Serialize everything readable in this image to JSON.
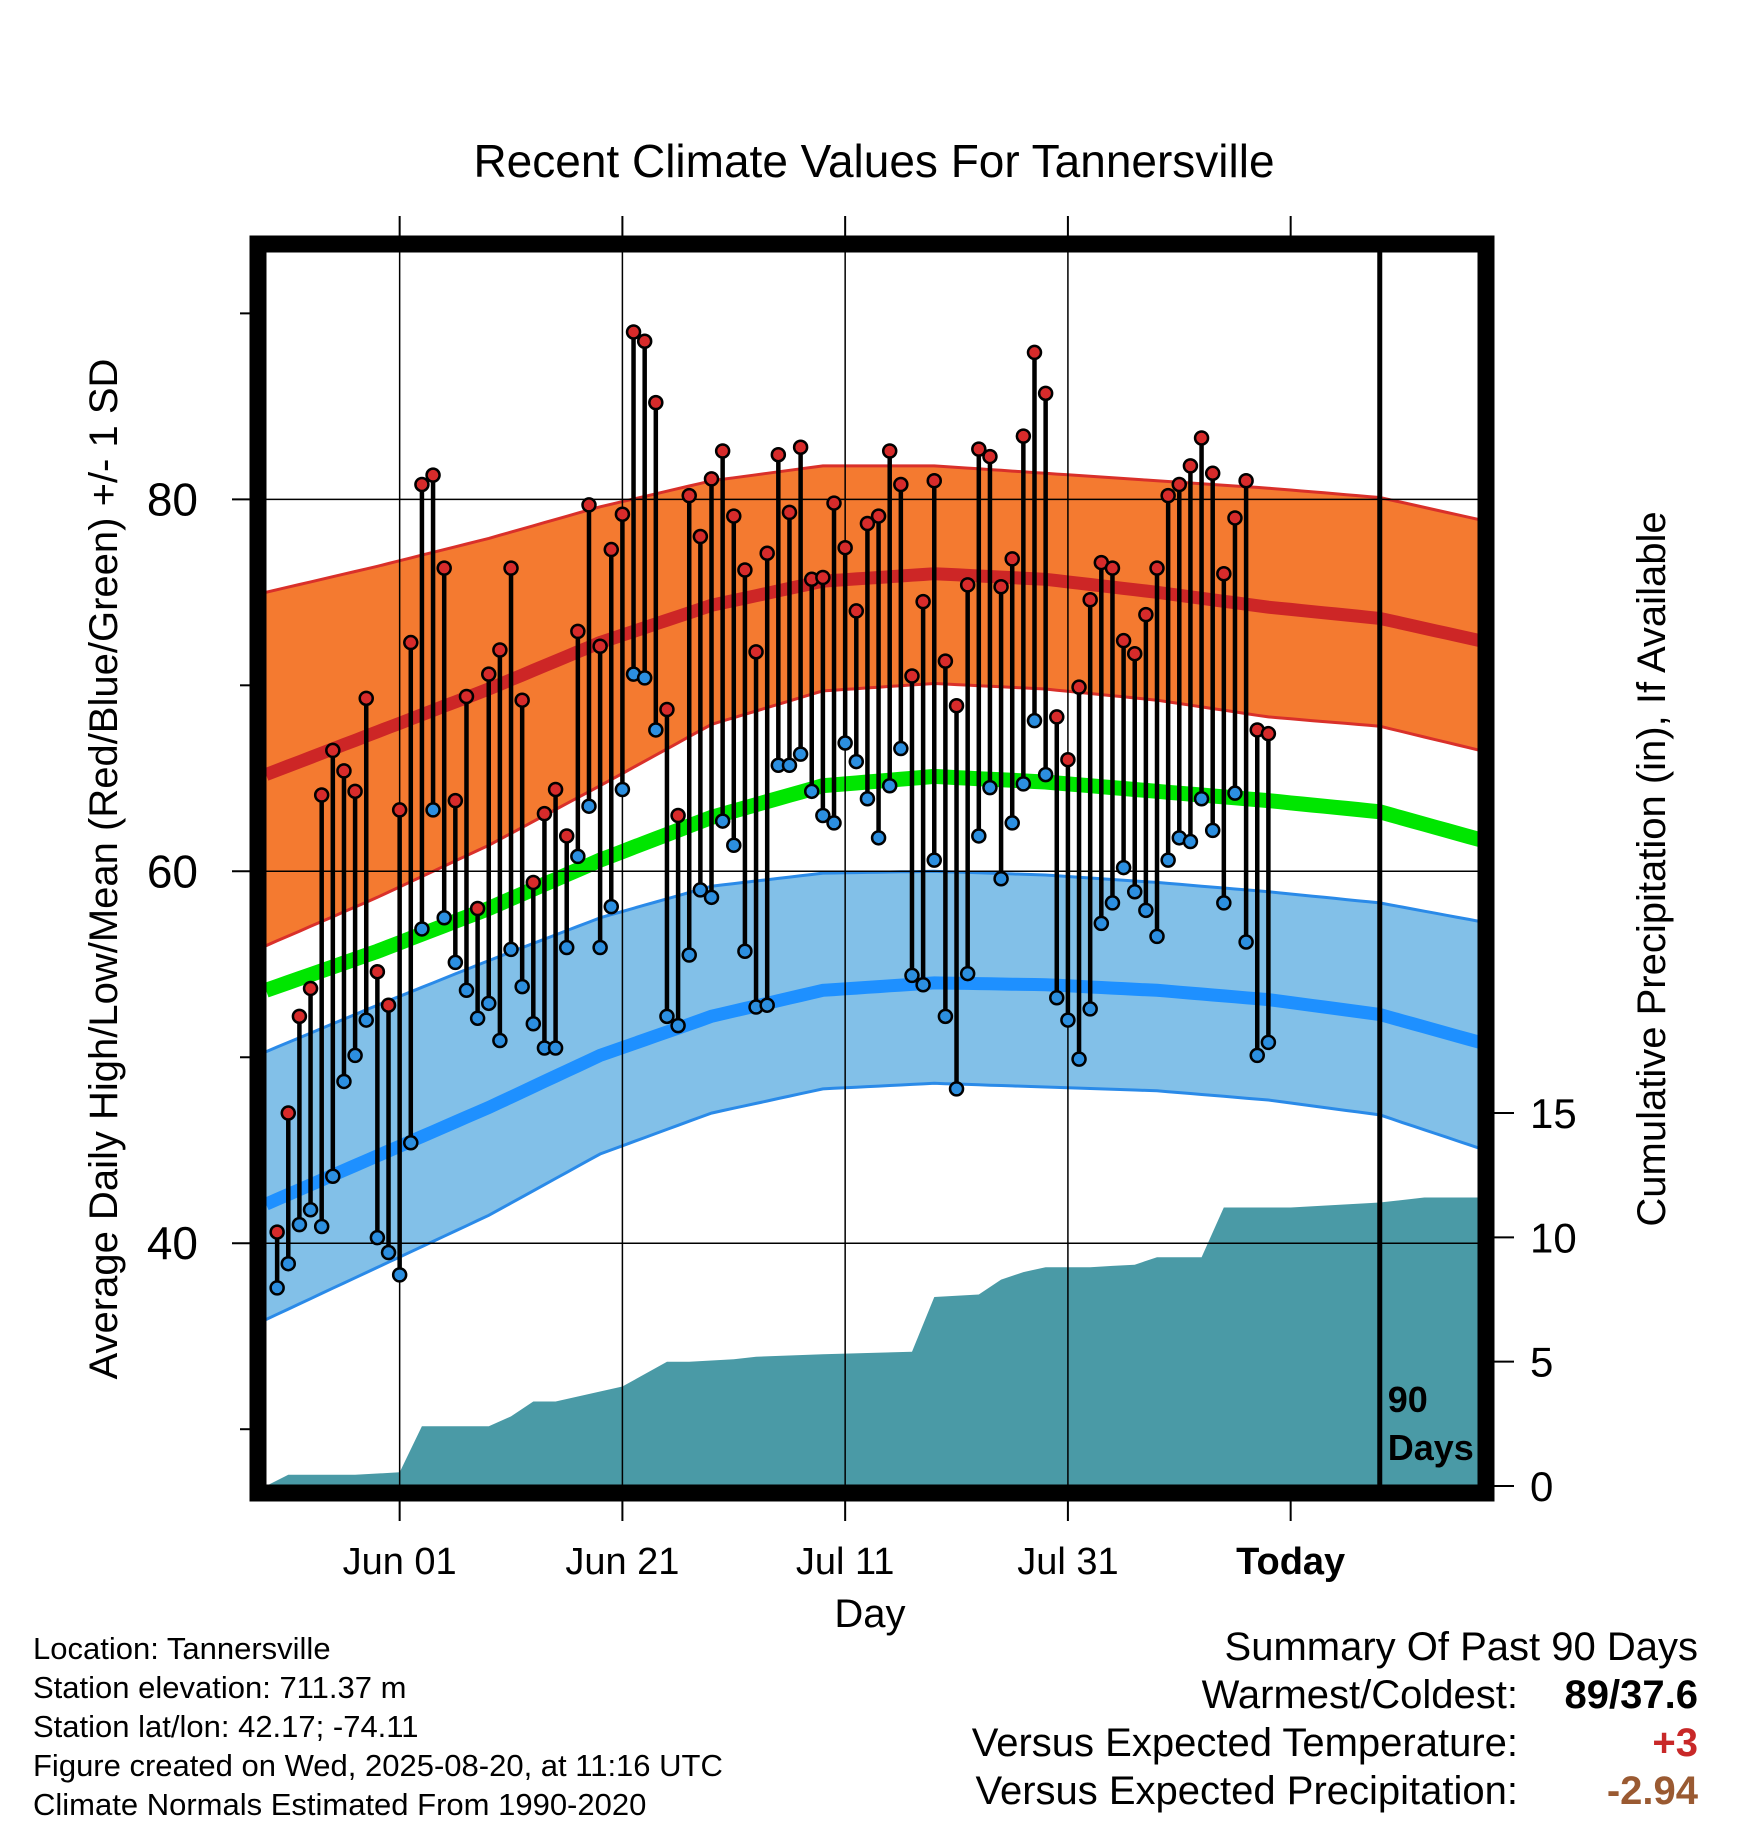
{
  "chart_data": {
    "type": "line",
    "title": "Recent Climate Values For Tannersville",
    "xlabel": "Day",
    "ylabel": "Average Daily High/Low/Mean (Red/Blue/Green) +/- 1 SD",
    "y2label": "Cumulative Precipitation (in), If Available",
    "x_ticks": [
      "Jun 01",
      "Jun 21",
      "Jul 11",
      "Jul 31",
      "Today"
    ],
    "y_ticks": [
      40,
      60,
      80
    ],
    "y2_ticks": [
      0,
      5,
      10,
      15
    ],
    "ylim": [
      27,
      93.3
    ],
    "y2lim": [
      0,
      50
    ],
    "xlim_days": [
      -100,
      9
    ],
    "today_label": "90 Days",
    "colors": {
      "high_band": "#f47a30",
      "high_mean": "#cd2626",
      "low_band": "#82c0e8",
      "low_mean": "#1e90ff",
      "normal_mean": "#00e600",
      "precip": "#4a9aa6",
      "high_point": "#d72b2b",
      "low_point": "#2c8fe0"
    },
    "normals": {
      "x_days": [
        -100,
        -90,
        -80,
        -70,
        -60,
        -50,
        -40,
        -30,
        -20,
        -10,
        0,
        9
      ],
      "high_mean": [
        65.2,
        67.5,
        69.8,
        72.3,
        74.3,
        75.6,
        76.0,
        75.7,
        75.0,
        74.2,
        73.6,
        72.4
      ],
      "high_upper": [
        75.0,
        76.4,
        77.9,
        79.6,
        81.0,
        81.8,
        81.8,
        81.4,
        81.0,
        80.6,
        80.1,
        78.9
      ],
      "high_lower": [
        56.0,
        58.6,
        61.4,
        64.6,
        67.9,
        69.7,
        70.1,
        69.8,
        69.2,
        68.3,
        67.8,
        66.5
      ],
      "normal_mean": [
        53.6,
        55.7,
        58.0,
        60.6,
        62.9,
        64.6,
        65.1,
        64.8,
        64.3,
        63.8,
        63.2,
        61.7
      ],
      "low_mean": [
        42.1,
        44.7,
        47.3,
        50.1,
        52.2,
        53.6,
        54.0,
        53.9,
        53.6,
        53.1,
        52.3,
        50.8
      ],
      "low_upper": [
        50.3,
        52.8,
        55.2,
        57.5,
        59.2,
        59.9,
        60.0,
        59.8,
        59.4,
        58.9,
        58.3,
        57.3
      ],
      "low_lower": [
        35.9,
        38.7,
        41.5,
        44.8,
        47.0,
        48.3,
        48.6,
        48.4,
        48.2,
        47.7,
        46.9,
        45.1
      ]
    },
    "daily": {
      "start_day": -99,
      "high": [
        40.6,
        47.0,
        52.2,
        53.7,
        64.1,
        66.5,
        65.4,
        64.3,
        69.3,
        54.6,
        52.8,
        63.3,
        72.3,
        80.8,
        81.3,
        76.3,
        63.8,
        69.4,
        58.0,
        70.6,
        71.9,
        76.3,
        69.2,
        59.4,
        63.1,
        64.4,
        61.9,
        72.9,
        79.7,
        72.1,
        77.3,
        79.2,
        89.0,
        88.5,
        85.2,
        68.7,
        63.0,
        80.2,
        78.0,
        81.1,
        82.6,
        79.1,
        76.2,
        71.8,
        77.1,
        82.4,
        79.3,
        82.8,
        75.7,
        75.8,
        79.8,
        77.4,
        74.0,
        78.7,
        79.1,
        82.6,
        80.8,
        70.5,
        74.5,
        81.0,
        71.3,
        68.9,
        75.4,
        82.7,
        82.3,
        75.3,
        76.8,
        83.4,
        87.9,
        85.7,
        68.3,
        66.0,
        69.9,
        74.6,
        76.6,
        76.3,
        72.4,
        71.7,
        73.8,
        76.3,
        80.2,
        80.8,
        81.8,
        83.3,
        81.4,
        76.0,
        79.0,
        81.0,
        67.6,
        67.4
      ],
      "low": [
        37.6,
        38.9,
        41.0,
        41.8,
        40.9,
        43.6,
        48.7,
        50.1,
        52.0,
        40.3,
        39.5,
        38.3,
        45.4,
        56.9,
        63.3,
        57.5,
        55.1,
        53.6,
        52.1,
        52.9,
        50.9,
        55.8,
        53.8,
        51.8,
        50.5,
        50.5,
        55.9,
        60.8,
        63.5,
        55.9,
        58.1,
        64.4,
        70.6,
        70.4,
        67.6,
        52.2,
        51.7,
        55.5,
        59.0,
        58.6,
        62.7,
        61.4,
        55.7,
        52.7,
        52.8,
        65.7,
        65.7,
        66.3,
        64.3,
        63.0,
        62.6,
        66.9,
        65.9,
        63.9,
        61.8,
        64.6,
        66.6,
        54.4,
        53.9,
        60.6,
        52.2,
        48.3,
        54.5,
        61.9,
        64.5,
        59.6,
        62.6,
        64.7,
        68.1,
        65.2,
        53.2,
        52.0,
        49.9,
        52.6,
        57.2,
        58.3,
        60.2,
        58.9,
        57.9,
        56.5,
        60.6,
        61.8,
        61.6,
        63.9,
        62.2,
        58.3,
        64.2,
        56.2,
        50.1,
        50.8
      ]
    },
    "precip_cumulative": {
      "x_days": [
        -100,
        -98,
        -92,
        -88,
        -86,
        -80,
        -78,
        -76,
        -74,
        -70,
        -68,
        -64,
        -62,
        -58,
        -56,
        -50,
        -46,
        -42,
        -40,
        -36,
        -34,
        -32,
        -30,
        -26,
        -24,
        -22,
        -20,
        -16,
        -14,
        -12,
        -10,
        -8,
        -6,
        -4,
        0,
        4,
        9
      ],
      "values": [
        0.0,
        0.45,
        0.45,
        0.55,
        2.4,
        2.4,
        2.8,
        3.4,
        3.4,
        3.8,
        4.0,
        5.0,
        5.0,
        5.1,
        5.2,
        5.3,
        5.35,
        5.4,
        7.6,
        7.7,
        8.3,
        8.6,
        8.8,
        8.8,
        8.85,
        8.9,
        9.2,
        9.2,
        11.2,
        11.2,
        11.2,
        11.2,
        11.25,
        11.3,
        11.4,
        11.6,
        11.6
      ]
    }
  },
  "info": {
    "location": "Location: Tannersville",
    "elevation": "Station elevation: 711.37 m",
    "latlon": "Station lat/lon: 42.17; -74.11",
    "created": "Figure created on Wed, 2025-08-20, at 11:16 UTC",
    "normals_period": "Climate Normals Estimated From 1990-2020"
  },
  "summary": {
    "header": "Summary Of Past 90 Days",
    "warmest_label": "Warmest/Coldest:",
    "warmest_value": "89/37.6",
    "temp_label": "Versus Expected Temperature:",
    "temp_value": "+3",
    "precip_label": "Versus Expected Precipitation:",
    "precip_value": "-2.94"
  }
}
